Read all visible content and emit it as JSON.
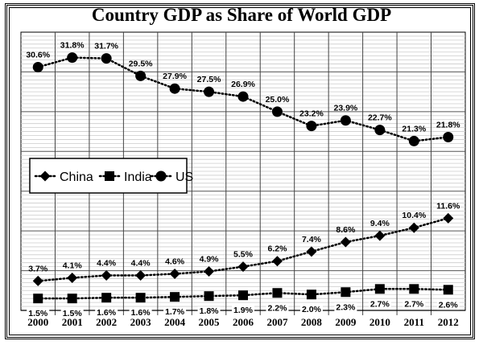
{
  "chart_data": {
    "type": "line",
    "title": "Country GDP as Share of World GDP",
    "xlabel": "",
    "ylabel": "",
    "x": [
      "2000",
      "2001",
      "2002",
      "2003",
      "2004",
      "2005",
      "2006",
      "2007",
      "2008",
      "2009",
      "2010",
      "2011",
      "2012"
    ],
    "ylim": [
      0,
      35
    ],
    "grid": true,
    "legend_position": "center-left",
    "series": [
      {
        "name": "China",
        "marker": "diamond",
        "label_position": "above",
        "values": [
          3.7,
          4.1,
          4.4,
          4.4,
          4.6,
          4.9,
          5.5,
          6.2,
          7.4,
          8.6,
          9.4,
          10.4,
          11.6
        ],
        "labels": [
          "3.7%",
          "4.1%",
          "4.4%",
          "4.4%",
          "4.6%",
          "4.9%",
          "5.5%",
          "6.2%",
          "7.4%",
          "8.6%",
          "9.4%",
          "10.4%",
          "11.6%"
        ]
      },
      {
        "name": "India",
        "marker": "square",
        "label_position": "below",
        "values": [
          1.5,
          1.5,
          1.6,
          1.6,
          1.7,
          1.8,
          1.9,
          2.2,
          2.0,
          2.3,
          2.7,
          2.7,
          2.6
        ],
        "labels": [
          "1.5%",
          "1.5%",
          "1.6%",
          "1.6%",
          "1.7%",
          "1.8%",
          "1.9%",
          "2.2%",
          "2.0%",
          "2.3%",
          "2.7%",
          "2.7%",
          "2.6%"
        ]
      },
      {
        "name": "US",
        "marker": "circle",
        "label_position": "above",
        "values": [
          30.6,
          31.8,
          31.7,
          29.5,
          27.9,
          27.5,
          26.9,
          25.0,
          23.2,
          23.9,
          22.7,
          21.3,
          21.8
        ],
        "labels": [
          "30.6%",
          "31.8%",
          "31.7%",
          "29.5%",
          "27.9%",
          "27.5%",
          "26.9%",
          "25.0%",
          "23.2%",
          "23.9%",
          "22.7%",
          "21.3%",
          "21.8%"
        ]
      }
    ]
  }
}
